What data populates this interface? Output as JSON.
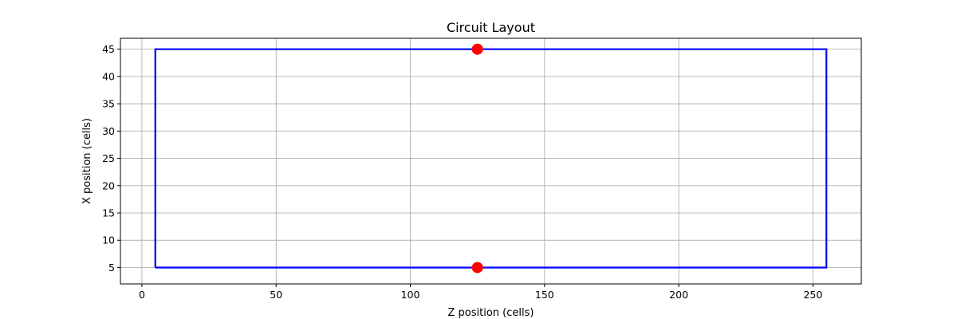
{
  "chart_data": {
    "type": "line",
    "title": "Circuit Layout",
    "xlabel": "Z position (cells)",
    "ylabel": "X position (cells)",
    "xlim": [
      -8,
      268
    ],
    "ylim": [
      2,
      47
    ],
    "xticks": [
      0,
      50,
      100,
      150,
      200,
      250
    ],
    "yticks": [
      5,
      10,
      15,
      20,
      25,
      30,
      35,
      40,
      45
    ],
    "grid": true,
    "series": [
      {
        "type": "line",
        "color": "#0000ff",
        "x": [
          5,
          255,
          255,
          5,
          5
        ],
        "y": [
          5,
          5,
          45,
          45,
          5
        ]
      },
      {
        "type": "scatter",
        "color": "#ff0000",
        "x": [
          125,
          125
        ],
        "y": [
          45,
          5
        ]
      }
    ]
  }
}
